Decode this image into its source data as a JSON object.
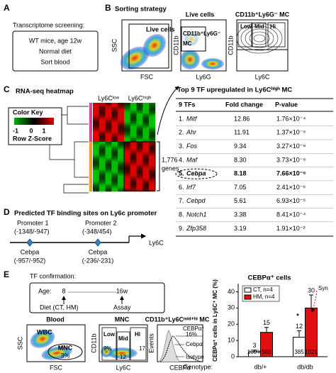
{
  "panel_a": {
    "label": "A",
    "title": "Transcriptome screening:",
    "box": [
      "WT mice, age 12w",
      "Normal diet",
      "Sort blood"
    ]
  },
  "panel_b": {
    "label": "B",
    "title": "Sorting strategy",
    "plots": [
      {
        "y_label": "SSC",
        "x_label": "FSC",
        "gate": "Live cells"
      },
      {
        "title": "Live cells",
        "y_label": "CD11b",
        "x_label": "Ly6G",
        "gate": [
          "CD11b⁺Ly6G⁻",
          "MC"
        ]
      },
      {
        "title": "CD11b⁺Ly6G⁻ MC",
        "y_label": "CD11b",
        "x_label": "Ly6C",
        "gates": [
          "Low",
          "Mid",
          "Hi"
        ]
      }
    ]
  },
  "panel_c": {
    "label": "C",
    "title": "RNA-seq heatmap",
    "color_key": {
      "title": "Color Key",
      "ticks": [
        "-1",
        "0",
        "1"
      ],
      "label": "Row Z-Score"
    },
    "columns": [
      "Ly6Cˡᵒʷ",
      "Ly6Cʰⁱᵍʰ"
    ],
    "genes": [
      "1,776",
      "genes"
    ]
  },
  "table": {
    "title": "Top 9 TF upregulated in Ly6Cʰⁱᵍʰ MC",
    "header": [
      "9 TFs",
      "Fold change",
      "P-value"
    ],
    "rows": [
      [
        "1.",
        "Mitf",
        "12.86",
        "1.76×10⁻⁴"
      ],
      [
        "2.",
        "Ahr",
        "11.91",
        "1.37×10⁻⁵"
      ],
      [
        "3.",
        "Fos",
        "9.34",
        "3.27×10⁻⁸"
      ],
      [
        "4.",
        "Maf",
        "8.30",
        "3.73×10⁻⁸"
      ],
      [
        "5.",
        "Cebpa",
        "8.18",
        "7.66×10⁻⁶"
      ],
      [
        "6.",
        "Irf7",
        "7.05",
        "2.41×10⁻⁶"
      ],
      [
        "7.",
        "Cebpd",
        "5.61",
        "6.93×10⁻⁵"
      ],
      [
        "8.",
        "Notch1",
        "3.38",
        "8.41×10⁻⁴"
      ],
      [
        "9.",
        "Zfp358",
        "3.19",
        "1.91×10⁻²"
      ]
    ]
  },
  "panel_d": {
    "label": "D",
    "title": "Predicted TF binding sites on Ly6c promoter",
    "promoters": [
      [
        "Promoter 1",
        "(-1348/-947)"
      ],
      [
        "Promoter 2",
        "(-348/454)"
      ]
    ],
    "sites": [
      [
        "Cebpa",
        "(-957/-952)"
      ],
      [
        "Cebpa",
        "(-236/-231)"
      ]
    ],
    "gene": "Ly6C"
  },
  "panel_e": {
    "label": "E",
    "title": "TF confirmation:",
    "timeline": {
      "age": "Age:",
      "start": "8",
      "end": "16w",
      "diet": "Diet (CT, HM)",
      "assay": "Assay"
    },
    "blood": {
      "title": "Blood",
      "y_label": "SSC",
      "x_label": "FSC",
      "gates": [
        "WBC",
        "MNC",
        "3%"
      ]
    },
    "mnc": {
      "title": "MNC",
      "y_label": "CD11b",
      "x_label": "Ly6C",
      "gates": [
        "Low",
        "Mid",
        "Hi",
        "9%",
        "12",
        "17"
      ]
    },
    "hist": {
      "title": "CD11b⁺Ly6Cᵐⁱᵈ⁺ʰⁱ MC",
      "y_label": "Events",
      "x_label": "CEBPα",
      "gates": [
        "CEBPα⁺",
        "16%",
        "Cebpα",
        "Isotype"
      ]
    }
  },
  "chart_data": {
    "type": "bar",
    "title": "CEBPα⁺ cells",
    "y_label": "CEBPα⁺ cells in Ly6C⁺ MC (%)",
    "x_title": "Genotype:",
    "categories": [
      "db/+",
      "db/db"
    ],
    "series": [
      {
        "name": "CT, n=4",
        "color": "#ffffff",
        "values": [
          3,
          12
        ],
        "errors": [
          1,
          4
        ],
        "inner_labels": [
          "100%",
          "385"
        ]
      },
      {
        "name": "HM, n=4",
        "color": "#e01010",
        "values": [
          15,
          30
        ],
        "errors": [
          3,
          8
        ],
        "inner_labels": [
          "508",
          "1021"
        ]
      }
    ],
    "ylim": [
      0,
      45
    ],
    "yticks": [
      0,
      10,
      20,
      30,
      40
    ],
    "legend": "top-left",
    "annotations": [
      "*",
      "Syn"
    ]
  }
}
